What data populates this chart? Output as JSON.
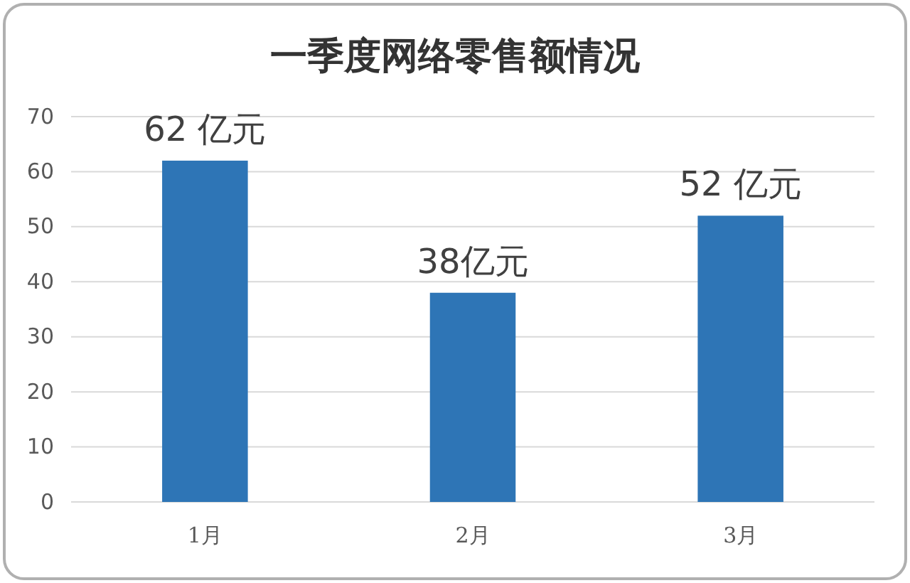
{
  "chart_data": {
    "type": "bar",
    "title": "一季度网络零售额情况",
    "categories": [
      "1月",
      "2月",
      "3月"
    ],
    "values": [
      62,
      38,
      52
    ],
    "value_labels": [
      "62 亿元",
      "38亿元",
      "52 亿元"
    ],
    "color": "#2e75b6",
    "ylim": [
      0,
      70
    ],
    "yticks": [
      0,
      10,
      20,
      30,
      40,
      50,
      60,
      70
    ],
    "grid": "y"
  }
}
